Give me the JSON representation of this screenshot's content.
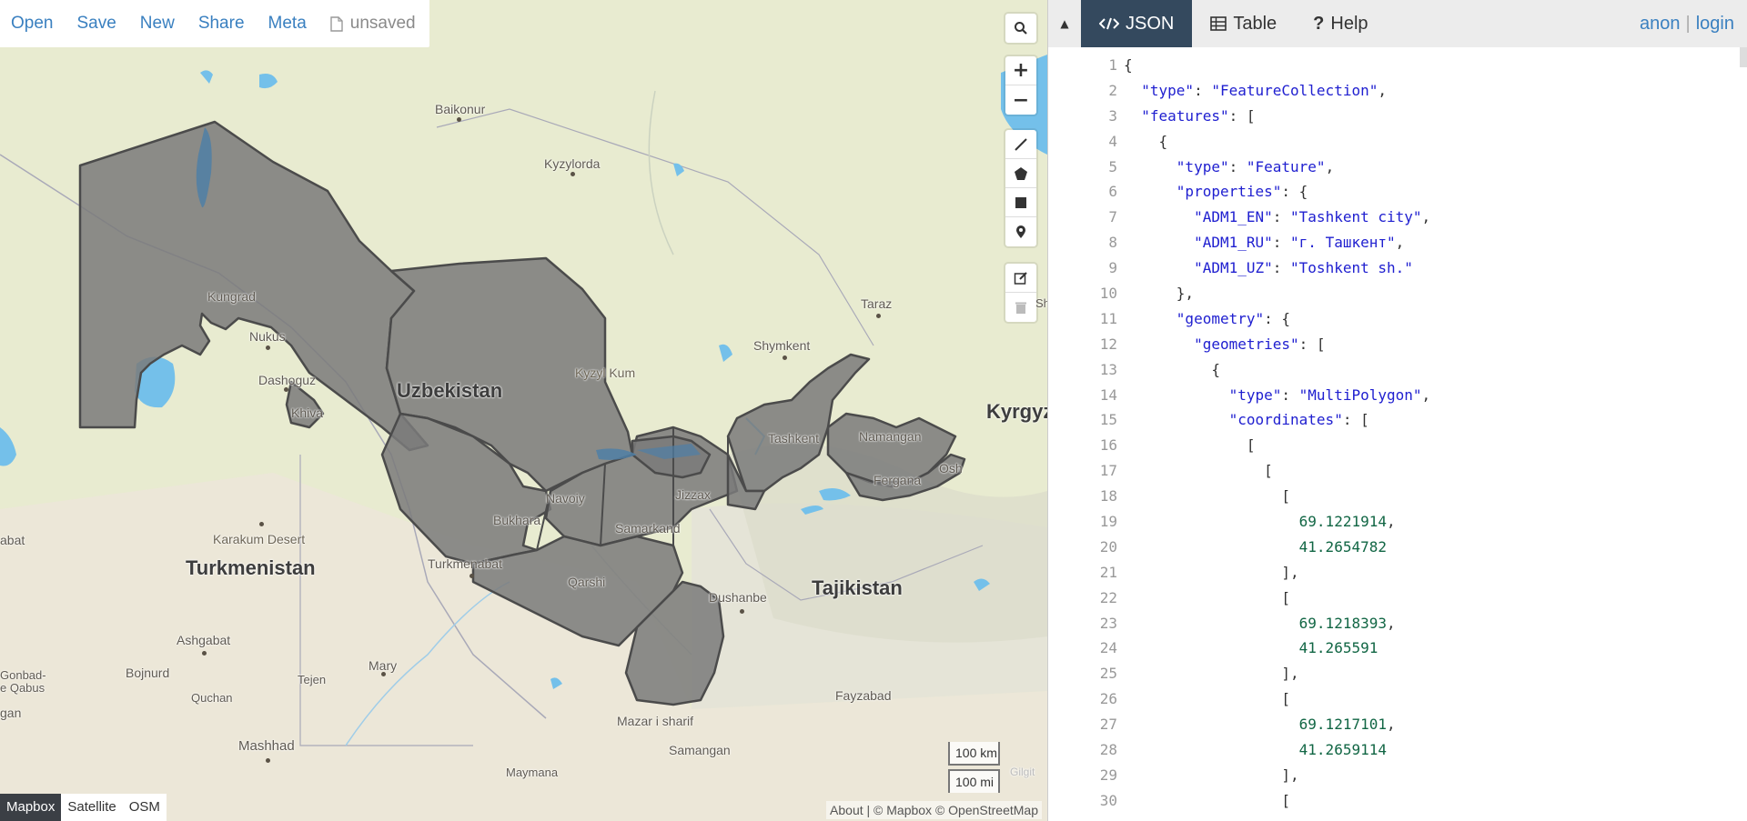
{
  "file_menu": {
    "open": "Open",
    "save": "Save",
    "new": "New",
    "share": "Share",
    "meta": "Meta",
    "status": "unsaved"
  },
  "map_controls": {
    "search_icon": "search-icon",
    "zoom_in": "+",
    "zoom_out": "−",
    "draw_tools": [
      "line-icon",
      "polygon-icon",
      "rectangle-icon",
      "marker-icon"
    ],
    "edit_tools": [
      "edit-icon",
      "trash-icon"
    ]
  },
  "places": [
    {
      "id": "baikonur",
      "label": "Baikonur",
      "type": "city"
    },
    {
      "id": "kyzylorda",
      "label": "Kyzylorda",
      "type": "city"
    },
    {
      "id": "kungrad",
      "label": "Kungrad",
      "type": "city"
    },
    {
      "id": "nukus",
      "label": "Nukus",
      "type": "city"
    },
    {
      "id": "dashoguz",
      "label": "Dashoguz",
      "type": "city"
    },
    {
      "id": "khiva",
      "label": "Khiva",
      "type": "city"
    },
    {
      "id": "uzbekistan",
      "label": "Uzbekistan",
      "type": "country"
    },
    {
      "id": "kyzylkum",
      "label": "Kyzyl Kum",
      "type": "desert"
    },
    {
      "id": "taraz",
      "label": "Taraz",
      "type": "city"
    },
    {
      "id": "shymkent",
      "label": "Shymkent",
      "type": "city"
    },
    {
      "id": "tashkent",
      "label": "Tashkent",
      "type": "city"
    },
    {
      "id": "namangan",
      "label": "Namangan",
      "type": "city"
    },
    {
      "id": "fergana",
      "label": "Fergana",
      "type": "city"
    },
    {
      "id": "osh",
      "label": "Osh",
      "type": "city"
    },
    {
      "id": "kyrgyz",
      "label": "Kyrgyz",
      "type": "country"
    },
    {
      "id": "navoiy",
      "label": "Navoiy",
      "type": "city"
    },
    {
      "id": "jizzax",
      "label": "Jizzax",
      "type": "city"
    },
    {
      "id": "bukhara",
      "label": "Bukhara",
      "type": "city"
    },
    {
      "id": "samarkand",
      "label": "Samarkand",
      "type": "city"
    },
    {
      "id": "karakum",
      "label": "Karakum Desert",
      "type": "desert"
    },
    {
      "id": "turkmenistan",
      "label": "Turkmenistan",
      "type": "country"
    },
    {
      "id": "turkmenabat",
      "label": "Turkmenabat",
      "type": "city"
    },
    {
      "id": "qarshi",
      "label": "Qarshi",
      "type": "city"
    },
    {
      "id": "dushanbe",
      "label": "Dushanbe",
      "type": "city"
    },
    {
      "id": "tajikistan",
      "label": "Tajikistan",
      "type": "country"
    },
    {
      "id": "ashgabat",
      "label": "Ashgabat",
      "type": "city"
    },
    {
      "id": "gonbad",
      "label": "Gonbad-\ne Qabus",
      "type": "city"
    },
    {
      "id": "bojnurd",
      "label": "Bojnurd",
      "type": "city"
    },
    {
      "id": "quchan",
      "label": "Quchan",
      "type": "city"
    },
    {
      "id": "tejen",
      "label": "Tejen",
      "type": "city"
    },
    {
      "id": "mary",
      "label": "Mary",
      "type": "city"
    },
    {
      "id": "mashhad",
      "label": "Mashhad",
      "type": "city"
    },
    {
      "id": "mazar",
      "label": "Mazar i sharif",
      "type": "city"
    },
    {
      "id": "samangan",
      "label": "Samangan",
      "type": "city"
    },
    {
      "id": "fayzabad",
      "label": "Fayzabad",
      "type": "city"
    },
    {
      "id": "maymana",
      "label": "Maymana",
      "type": "city"
    },
    {
      "id": "gilgit",
      "label": "Gilgit",
      "type": "city"
    },
    {
      "id": "abat",
      "label": "abat",
      "type": "city"
    },
    {
      "id": "gan",
      "label": "gan",
      "type": "city"
    },
    {
      "id": "sh",
      "label": "Sh",
      "type": "city"
    }
  ],
  "scale": {
    "km": "100 km",
    "mi": "100 mi"
  },
  "basemaps": [
    "Mapbox",
    "Satellite",
    "OSM"
  ],
  "active_basemap": "Mapbox",
  "attribution": "About | © Mapbox © OpenStreetMap",
  "panel": {
    "collapse_icon": "▲",
    "tabs": [
      {
        "label": "JSON",
        "icon": "code-icon",
        "active": true
      },
      {
        "label": "Table",
        "icon": "table-icon",
        "active": false
      },
      {
        "label": "Help",
        "icon": "question-icon",
        "active": false
      }
    ],
    "user": {
      "anon": "anon",
      "separator": "|",
      "login": "login"
    }
  },
  "code_lines": [
    "{",
    "  \"type\": \"FeatureCollection\",",
    "  \"features\": [",
    "    {",
    "      \"type\": \"Feature\",",
    "      \"properties\": {",
    "        \"ADM1_EN\": \"Tashkent city\",",
    "        \"ADM1_RU\": \"г. Ташкент\",",
    "        \"ADM1_UZ\": \"Toshkent sh.\"",
    "      },",
    "      \"geometry\": {",
    "        \"geometries\": [",
    "          {",
    "            \"type\": \"MultiPolygon\",",
    "            \"coordinates\": [",
    "              [",
    "                [",
    "                  [",
    "                    69.1221914,",
    "                    41.2654782",
    "                  ],",
    "                  [",
    "                    69.1218393,",
    "                    41.265591",
    "                  ],",
    "                  [",
    "                    69.1217101,",
    "                    41.2659114",
    "                  ],",
    "                  ["
  ],
  "colors": {
    "map_bg": "#e9ecd3",
    "water": "#74c0ea",
    "polygon_fill": "#7f7f7f",
    "active_tab": "#34495e",
    "link": "#3a80c0"
  }
}
